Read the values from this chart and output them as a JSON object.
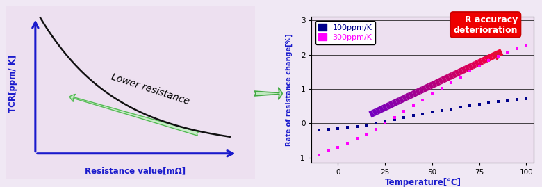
{
  "bg_color": "#f0e8f4",
  "left_bg": "#ede0f0",
  "left_panel": {
    "ylabel": "TCR[ppm/ K]",
    "xlabel": "Resistance value[mΩ]",
    "ylabel_color": "#1a1acc",
    "xlabel_color": "#1a1acc",
    "axis_color": "#1a1acc",
    "curve_color": "#111111",
    "arrow_label": "Lower resistance",
    "arrow_color": "#c8ecc8",
    "arrow_edge_color": "#55bb55"
  },
  "right_panel": {
    "ylabel": "Rate of resistance change[%]",
    "xlabel": "Temperature[°C]",
    "ylabel_color": "#1a1acc",
    "xlabel_color": "#1a1acc",
    "ylim": [
      -1.15,
      3.1
    ],
    "xlim": [
      -14,
      104
    ],
    "yticks": [
      -1,
      0,
      1,
      2,
      3
    ],
    "xticks": [
      0,
      25,
      50,
      75,
      100
    ],
    "legend_100": "100ppm/K",
    "legend_300": "300ppm/K",
    "legend_100_color": "#00008b",
    "legend_300_color": "#ff00ff",
    "series_100_color": "#00008b",
    "series_300_color": "#ff00ff",
    "callout_text": "R accuracy\ndeterioration",
    "callout_bg": "#ee0000",
    "callout_text_color": "#ffffff"
  },
  "temp_100": [
    -10,
    -5,
    0,
    5,
    10,
    15,
    20,
    25,
    30,
    35,
    40,
    45,
    50,
    55,
    60,
    65,
    70,
    75,
    80,
    85,
    90,
    95,
    100
  ],
  "val_100": [
    -0.19,
    -0.17,
    -0.15,
    -0.12,
    -0.09,
    -0.05,
    0.0,
    0.05,
    0.11,
    0.17,
    0.22,
    0.27,
    0.32,
    0.37,
    0.42,
    0.47,
    0.52,
    0.56,
    0.6,
    0.63,
    0.66,
    0.69,
    0.72
  ],
  "temp_300": [
    -10,
    -5,
    0,
    5,
    10,
    15,
    20,
    25,
    30,
    35,
    40,
    45,
    50,
    55,
    60,
    65,
    70,
    75,
    80,
    85,
    90,
    95,
    100
  ],
  "val_300": [
    -0.92,
    -0.81,
    -0.7,
    -0.58,
    -0.45,
    -0.31,
    -0.17,
    0.0,
    0.17,
    0.34,
    0.51,
    0.68,
    0.85,
    1.01,
    1.18,
    1.35,
    1.52,
    1.67,
    1.82,
    1.95,
    2.07,
    2.17,
    2.26
  ]
}
